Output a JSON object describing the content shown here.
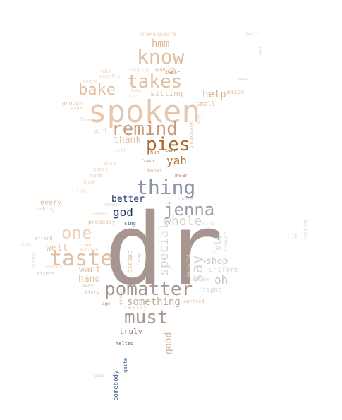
{
  "palette": {
    "tan_light": "#ecd3bd",
    "tan": "#e3bfa1",
    "tan_mid": "#d9b08e",
    "brown": "#b5763c",
    "brown_dark": "#a8692f",
    "taupe": "#a6968f",
    "taupe_dark": "#8e817c",
    "slate": "#8a93a8",
    "navy": "#1f2f66",
    "blue": "#3e5f8e",
    "grey_light": "#d7d7d7",
    "grey": "#c4c4c4",
    "pale": "#f2ddd0"
  },
  "words": [
    {
      "text": "dr",
      "color": "#a6968f"
    },
    {
      "text": "spoken",
      "color": "#e6c7ad"
    },
    {
      "text": "pomatter",
      "color": "#a6968f"
    },
    {
      "text": "taste",
      "color": "#e3bfa1"
    },
    {
      "text": "know",
      "color": "#e3bfa1"
    },
    {
      "text": "takes",
      "color": "#e3bfa1"
    },
    {
      "text": "remind",
      "color": "#c89a77"
    },
    {
      "text": "pies",
      "color": "#a8692f"
    },
    {
      "text": "thing",
      "color": "#8a93a8"
    },
    {
      "text": "must",
      "color": "#a6968f"
    },
    {
      "text": "jenna",
      "color": "#9e9eab"
    },
    {
      "text": "one",
      "color": "#ecd3bd"
    },
    {
      "text": "say",
      "color": "#d7d7d7"
    },
    {
      "text": "bake",
      "color": "#e3bfa1"
    },
    {
      "text": "whole",
      "color": "#d7d0cb"
    },
    {
      "text": "special",
      "color": "#dcd6d0"
    },
    {
      "text": "something",
      "color": "#c1aa97"
    },
    {
      "text": "god",
      "color": "#1f2f66"
    },
    {
      "text": "better",
      "color": "#1f2f66"
    },
    {
      "text": "yah",
      "color": "#b5763c"
    },
    {
      "text": "hmm",
      "color": "#d9b08e"
    },
    {
      "text": "help",
      "color": "#d9b08e"
    },
    {
      "text": "thank",
      "color": "#e3bfa1"
    },
    {
      "text": "well",
      "color": "#e3bfa1"
    },
    {
      "text": "want",
      "color": "#e3bfa1"
    },
    {
      "text": "hand",
      "color": "#e3bfa1"
    },
    {
      "text": "oh",
      "color": "#c4c4c4"
    },
    {
      "text": "shop",
      "color": "#c9c9c9"
    },
    {
      "text": "felt",
      "color": "#d7d7d7"
    },
    {
      "text": "good",
      "color": "#d9b08e"
    },
    {
      "text": "th",
      "color": "#ecdcc9"
    },
    {
      "text": "truly",
      "color": "#8e817c"
    },
    {
      "text": "sitting",
      "color": "#e3bfa1"
    },
    {
      "text": "uniform",
      "color": "#d7d7d7"
    },
    {
      "text": "every",
      "color": "#e3bfa1"
    },
    {
      "text": "small",
      "color": "#e3bfa1"
    },
    {
      "text": "really",
      "color": "#ecd3bd"
    },
    {
      "text": "right",
      "color": "#d7d7d7"
    },
    {
      "text": "escape",
      "color": "#e3bfa1"
    },
    {
      "text": "shakespeare",
      "color": "#ecd3bd"
    },
    {
      "text": "singing",
      "color": "#f2ddd0"
    },
    {
      "text": "goodies",
      "color": "#e3bfa1"
    },
    {
      "text": "way",
      "color": "#ecd3bd"
    },
    {
      "text": "exactly",
      "color": "#ecd3bd"
    },
    {
      "text": "snack",
      "color": "#f2ddd0"
    },
    {
      "text": "enough",
      "color": "#e3bfa1"
    },
    {
      "text": "ever",
      "color": "#ecd3bd"
    },
    {
      "text": "how",
      "color": "#ecd3bd"
    },
    {
      "text": "taco",
      "color": "#f2ddd0"
    },
    {
      "text": "swear",
      "color": "#b5763c"
    },
    {
      "text": "mixed",
      "color": "#e3bfa1"
    },
    {
      "text": "flavors",
      "color": "#e3bfa1"
    },
    {
      "text": "girl",
      "color": "#ecd3bd"
    },
    {
      "text": "baby",
      "color": "#ecd3bd"
    },
    {
      "text": "intoxicated",
      "color": "#e3bfa1"
    },
    {
      "text": "tell",
      "color": "#ecd3bd"
    },
    {
      "text": "huh",
      "color": "#b5763c"
    },
    {
      "text": "sweet",
      "color": "#b5763c"
    },
    {
      "text": "fresh",
      "color": "#b5763c"
    },
    {
      "text": "bite",
      "color": "#ecd3bd"
    },
    {
      "text": "guess",
      "color": "#ecd3bd"
    },
    {
      "text": "made",
      "color": "#ecd3bd"
    },
    {
      "text": "knew",
      "color": "#ecd3bd"
    },
    {
      "text": "books",
      "color": "#d9b08e"
    },
    {
      "text": "mean",
      "color": "#c89a77"
    },
    {
      "text": "lot",
      "color": "#ecd3bd"
    },
    {
      "text": "couldn",
      "color": "#c4c4c4"
    },
    {
      "text": "making",
      "color": "#e3bfa1"
    },
    {
      "text": "notices",
      "color": "#ecd3bd"
    },
    {
      "text": "wonder",
      "color": "#ecd3bd"
    },
    {
      "text": "probably",
      "color": "#e3bfa1"
    },
    {
      "text": "sing",
      "color": "#3e5f8e"
    },
    {
      "text": "afford",
      "color": "#e3bfa1"
    },
    {
      "text": "room",
      "color": "#ecd3bd"
    },
    {
      "text": "middle",
      "color": "#ecd3bd"
    },
    {
      "text": "waitress",
      "color": "#ecd3bd"
    },
    {
      "text": "sirens",
      "color": "#e3bfa1"
    },
    {
      "text": "day",
      "color": "#e3bfa1"
    },
    {
      "text": "kitchen",
      "color": "#ecd3bd"
    },
    {
      "text": "funny",
      "color": "#e3bfa1"
    },
    {
      "text": "sometimes",
      "color": "#a6968f"
    },
    {
      "text": "masterful",
      "color": "#ecd3bd"
    },
    {
      "text": "letters",
      "color": "#d7d7d7"
    },
    {
      "text": "kind",
      "color": "#e0e0e0"
    },
    {
      "text": "frequent",
      "color": "#e0e0e0"
    },
    {
      "text": "carried",
      "color": "#e3bfa1"
    },
    {
      "text": "away",
      "color": "#e3bfa1"
    },
    {
      "text": "story",
      "color": "#e3bfa1"
    },
    {
      "text": "age",
      "color": "#b5763c"
    },
    {
      "text": "gonna",
      "color": "#e3bfa1"
    },
    {
      "text": "melted",
      "color": "#3e5f8e"
    },
    {
      "text": "somebody",
      "color": "#3e5f8e"
    },
    {
      "text": "quite",
      "color": "#3e5f8e"
    },
    {
      "text": "used",
      "color": "#e3bfa1"
    },
    {
      "text": "music",
      "color": "#ecd3bd"
    },
    {
      "text": "hear",
      "color": "#ecd3bd"
    },
    {
      "text": "seemed",
      "color": "#e3bfa1"
    },
    {
      "text": "testing",
      "color": "#ecd3bd"
    }
  ]
}
